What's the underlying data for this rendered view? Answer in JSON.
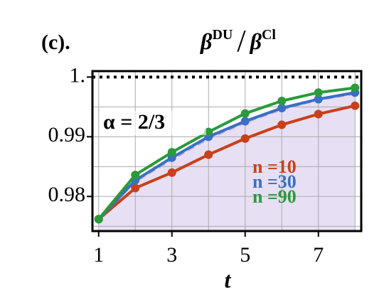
{
  "chart_data": {
    "type": "line",
    "panel_label": "(c).",
    "title": [
      "β",
      "DU",
      "/",
      "β",
      "Cl"
    ],
    "annotation": "α = 2/3",
    "xlabel": "t",
    "x": [
      1,
      2,
      3,
      4,
      5,
      6,
      7,
      8
    ],
    "series": [
      {
        "name": "n =10",
        "color": "#c8401a",
        "values": [
          0.9762,
          0.9814,
          0.984,
          0.987,
          0.9897,
          0.992,
          0.9938,
          0.9952
        ]
      },
      {
        "name": "n =30",
        "color": "#3a6fc4",
        "values": [
          0.9762,
          0.9827,
          0.9865,
          0.99,
          0.9926,
          0.9948,
          0.9963,
          0.9974
        ]
      },
      {
        "name": "n =90",
        "color": "#2a9a3a",
        "values": [
          0.9762,
          0.9836,
          0.9874,
          0.9908,
          0.9939,
          0.996,
          0.9974,
          0.9982
        ]
      }
    ],
    "area": {
      "color": "#b9a3dc",
      "values": [
        0.9762,
        0.9825,
        0.9862,
        0.9897,
        0.9924,
        0.9946,
        0.9962,
        0.9972
      ]
    },
    "reference_line": 1,
    "xlim": [
      0.83,
      8.17
    ],
    "ylim": [
      0.9742,
      1.001
    ],
    "xticks": [
      1,
      3,
      5,
      7
    ],
    "yticks": [
      {
        "value": 1,
        "label": "1."
      },
      0.99,
      0.98
    ],
    "xgrid": [
      1,
      2,
      3,
      4,
      5,
      6,
      7,
      8
    ],
    "ygrid": [
      0.975,
      0.98,
      0.985,
      0.99,
      0.995
    ],
    "grid": true
  }
}
